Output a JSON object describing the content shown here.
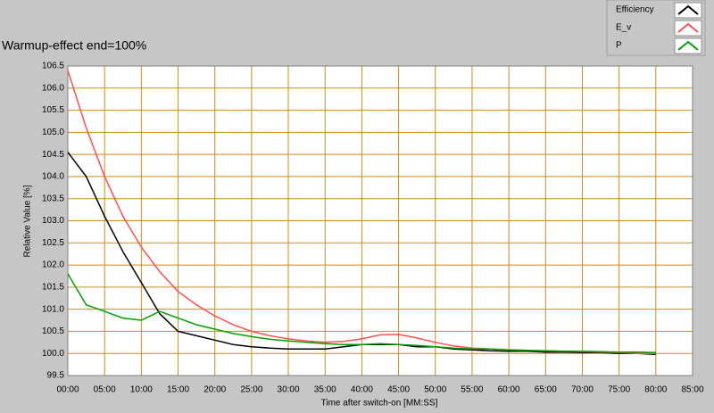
{
  "chart_data": {
    "type": "line",
    "title": "Warmup-effect end=100%",
    "x_label": "Time after switch-on [MM:SS]",
    "y_label": "Relative Value [%]",
    "x": [
      0,
      2.5,
      5,
      7.5,
      10,
      12.5,
      15,
      17.5,
      20,
      22.5,
      25,
      27.5,
      30,
      32.5,
      35,
      37.5,
      40,
      42.5,
      45,
      47.5,
      50,
      52.5,
      55,
      57.5,
      60,
      62.5,
      65,
      67.5,
      70,
      72.5,
      75,
      77.5,
      80
    ],
    "series": [
      {
        "name": "Efficiency",
        "color": "#000000",
        "values": [
          104.55,
          104.0,
          103.1,
          102.3,
          101.6,
          100.9,
          100.5,
          100.4,
          100.3,
          100.2,
          100.15,
          100.12,
          100.1,
          100.1,
          100.1,
          100.15,
          100.2,
          100.2,
          100.2,
          100.15,
          100.15,
          100.1,
          100.08,
          100.06,
          100.05,
          100.05,
          100.03,
          100.03,
          100.02,
          100.02,
          100.0,
          100.0,
          99.98
        ]
      },
      {
        "name": "E_v",
        "color": "#ff5050",
        "values": [
          106.4,
          105.1,
          104.0,
          103.1,
          102.4,
          101.85,
          101.4,
          101.1,
          100.85,
          100.65,
          100.5,
          100.4,
          100.33,
          100.28,
          100.25,
          100.27,
          100.33,
          100.42,
          100.43,
          100.35,
          100.25,
          100.17,
          100.12,
          100.1,
          100.08,
          100.07,
          100.06,
          100.05,
          100.04,
          100.03,
          100.02,
          100.0,
          100.0
        ]
      },
      {
        "name": "P",
        "color": "#00a000",
        "values": [
          101.8,
          101.1,
          100.95,
          100.8,
          100.75,
          100.95,
          100.8,
          100.65,
          100.55,
          100.45,
          100.38,
          100.32,
          100.28,
          100.25,
          100.22,
          100.2,
          100.2,
          100.22,
          100.2,
          100.18,
          100.15,
          100.12,
          100.1,
          100.1,
          100.08,
          100.07,
          100.06,
          100.05,
          100.05,
          100.04,
          100.03,
          100.03,
          100.02
        ]
      }
    ],
    "xlim": [
      0,
      85
    ],
    "xticks": [
      {
        "value": 0,
        "label": "00:00"
      },
      {
        "value": 5,
        "label": "05:00"
      },
      {
        "value": 10,
        "label": "10:00"
      },
      {
        "value": 15,
        "label": "15:00"
      },
      {
        "value": 20,
        "label": "20:00"
      },
      {
        "value": 25,
        "label": "25:00"
      },
      {
        "value": 30,
        "label": "30:00"
      },
      {
        "value": 35,
        "label": "35:00"
      },
      {
        "value": 40,
        "label": "40:00"
      },
      {
        "value": 45,
        "label": "45:00"
      },
      {
        "value": 50,
        "label": "50:00"
      },
      {
        "value": 55,
        "label": "55:00"
      },
      {
        "value": 60,
        "label": "60:00"
      },
      {
        "value": 65,
        "label": "65:00"
      },
      {
        "value": 70,
        "label": "70:00"
      },
      {
        "value": 75,
        "label": "75:00"
      },
      {
        "value": 80,
        "label": "80:00"
      },
      {
        "value": 85,
        "label": "85:00"
      }
    ],
    "ylim": [
      99.5,
      106.5
    ],
    "yticks": [
      99.5,
      {
        "value": 100,
        "label": "100.0"
      },
      100.5,
      {
        "value": 101,
        "label": "101.0"
      },
      101.5,
      {
        "value": 102,
        "label": "102.0"
      },
      102.5,
      {
        "value": 103,
        "label": "103.0"
      },
      103.5,
      {
        "value": 104,
        "label": "104.0"
      },
      104.5,
      {
        "value": 105,
        "label": "105.0"
      },
      105.5,
      {
        "value": 106,
        "label": "106.0"
      },
      106.5
    ],
    "grid": true,
    "grid_color": "#d08a1c",
    "legend": "top-right"
  }
}
